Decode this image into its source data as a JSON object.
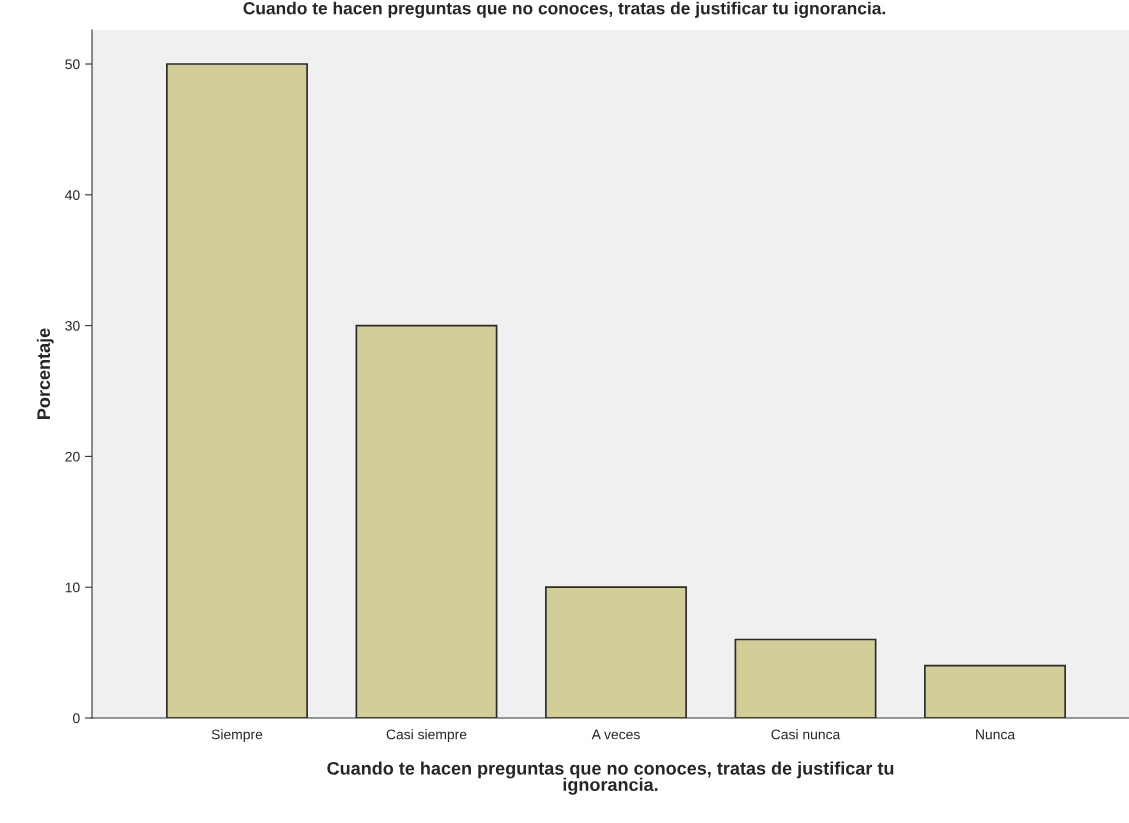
{
  "chart_data": {
    "type": "bar",
    "title": "Cuando te hacen preguntas que no conoces, tratas de justificar tu ignorancia.",
    "xlabel": "Cuando te hacen preguntas que no conoces, tratas de justificar tu\nignorancia.",
    "ylabel": "Porcentaje",
    "categories": [
      "Siempre",
      "Casi siempre",
      "A veces",
      "Casi nunca",
      "Nunca"
    ],
    "values": [
      50,
      30,
      10,
      6,
      4
    ],
    "color": "#d3ce97",
    "ylim": [
      0,
      52.6
    ],
    "yticks": [
      0,
      10,
      20,
      30,
      40,
      50
    ],
    "grid": false
  }
}
